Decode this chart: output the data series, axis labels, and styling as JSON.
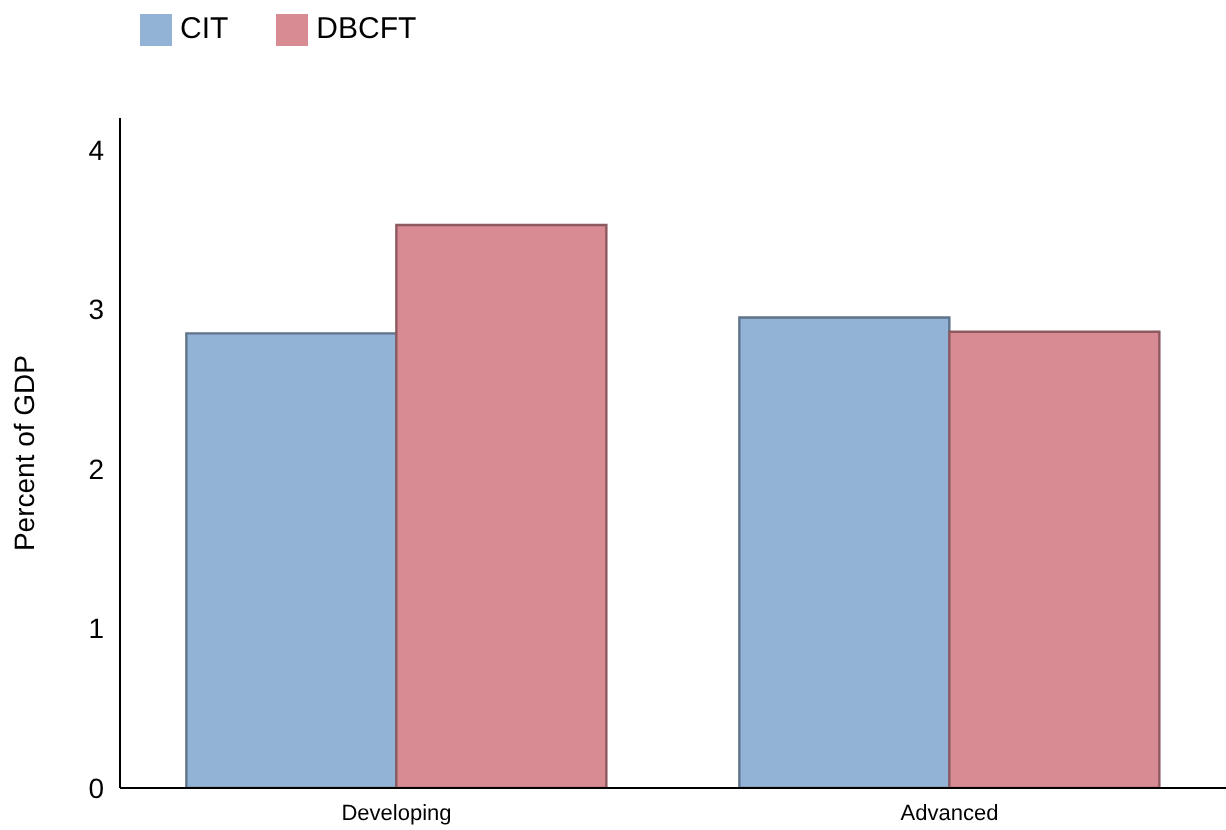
{
  "chart_data": {
    "type": "bar",
    "ylabel": "Percent of GDP",
    "categories": [
      "Developing",
      "Advanced"
    ],
    "series": [
      {
        "name": "CIT",
        "color": "#92b2d6",
        "values": [
          2.85,
          2.95
        ]
      },
      {
        "name": "DBCFT",
        "color": "#d98b94",
        "values": [
          3.53,
          2.86
        ]
      }
    ],
    "ylim": [
      0,
      4.2
    ],
    "yticks": [
      0,
      1,
      2,
      3,
      4
    ],
    "grid": false,
    "legend": "top left"
  }
}
